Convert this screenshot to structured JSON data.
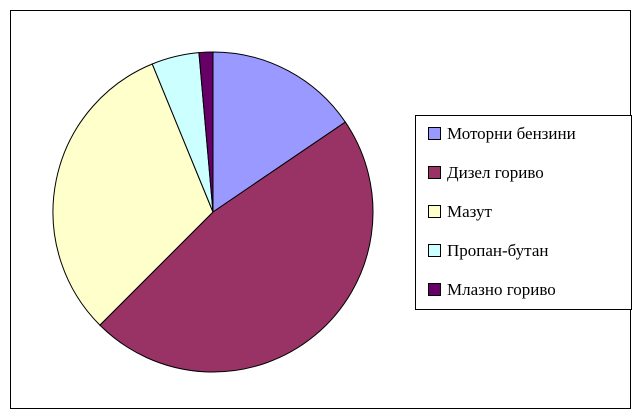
{
  "chart_data": {
    "type": "pie",
    "categories": [
      "Моторни бензини",
      "Дизел гориво",
      "Мазут",
      "Пропан-бутан",
      "Млазно гориво"
    ],
    "values": [
      15.5,
      47,
      31.3,
      4.8,
      1.4
    ],
    "colors": [
      "#9999ff",
      "#993366",
      "#ffffcc",
      "#ccffff",
      "#660066"
    ],
    "legend": "right"
  }
}
